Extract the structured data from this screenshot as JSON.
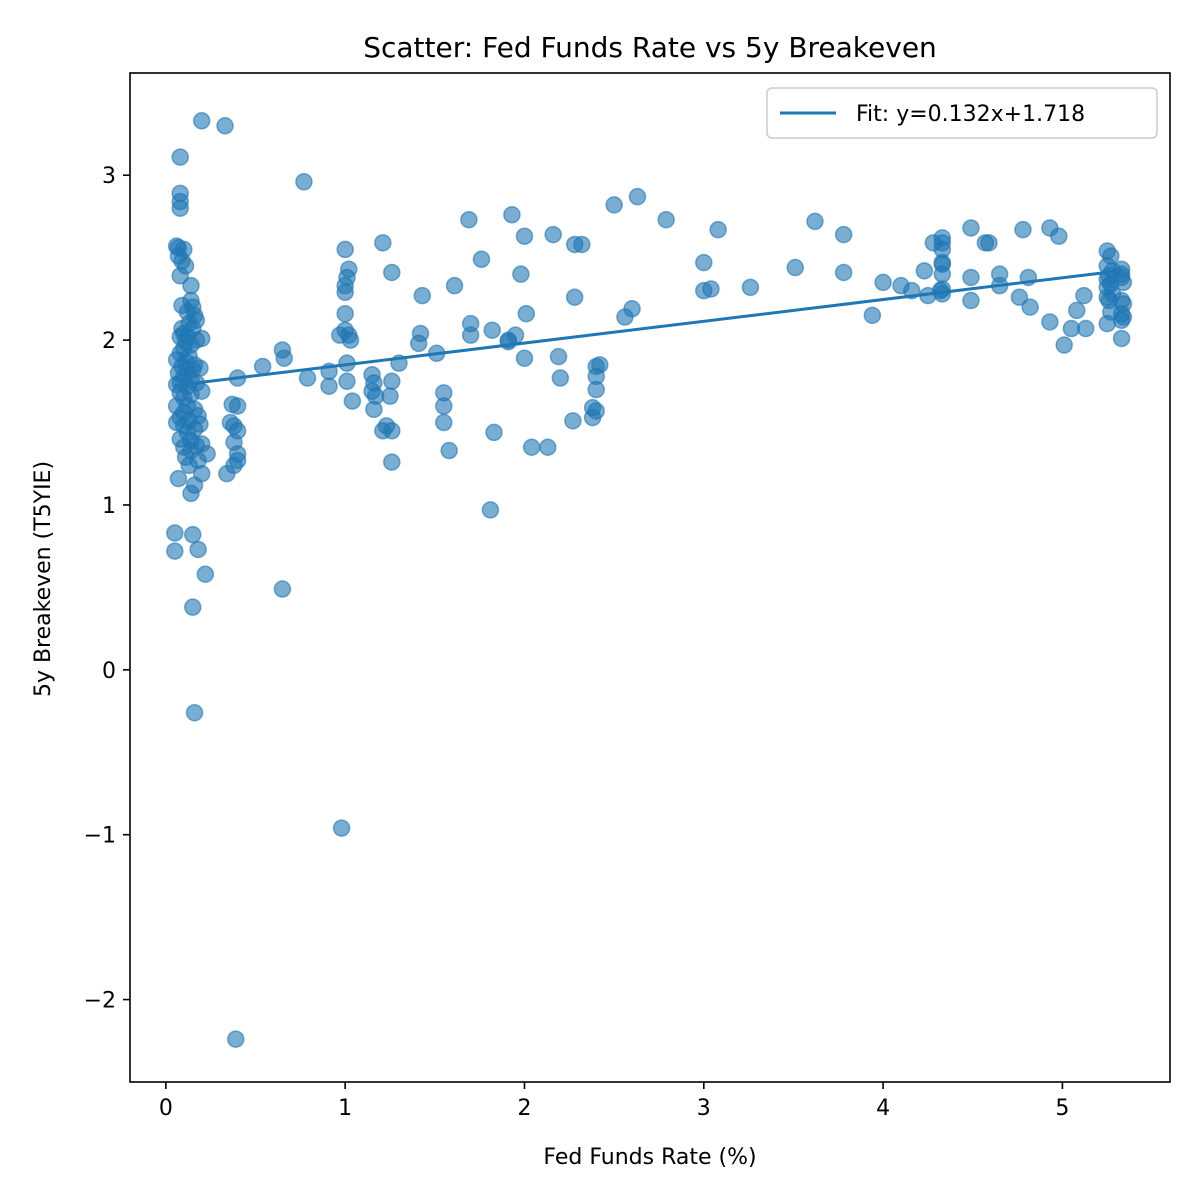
{
  "chart_data": {
    "type": "scatter",
    "title": "Scatter: Fed Funds Rate vs 5y Breakeven",
    "xlabel": "Fed Funds Rate (%)",
    "ylabel": "5y Breakeven (T5YIE)",
    "xlim": [
      -0.2,
      5.6
    ],
    "ylim": [
      -2.5,
      3.62
    ],
    "xticks": [
      0,
      1,
      2,
      3,
      4,
      5
    ],
    "yticks": [
      -2,
      -1,
      0,
      1,
      2,
      3
    ],
    "xtick_labels": [
      "0",
      "1",
      "2",
      "3",
      "4",
      "5"
    ],
    "ytick_labels": [
      "−2",
      "−1",
      "0",
      "1",
      "2",
      "3"
    ],
    "grid": false,
    "legend_position": "top-right",
    "colors": {
      "series": "#1f77b4"
    },
    "series": [
      {
        "type": "scatter",
        "points": [
          [
            0.2,
            3.33
          ],
          [
            0.33,
            3.3
          ],
          [
            0.08,
            3.11
          ],
          [
            0.08,
            2.89
          ],
          [
            0.08,
            2.84
          ],
          [
            0.08,
            2.8
          ],
          [
            0.06,
            2.57
          ],
          [
            0.07,
            2.56
          ],
          [
            0.1,
            2.55
          ],
          [
            0.07,
            2.51
          ],
          [
            0.09,
            2.48
          ],
          [
            0.11,
            2.45
          ],
          [
            0.08,
            2.39
          ],
          [
            0.14,
            2.33
          ],
          [
            0.14,
            2.24
          ],
          [
            0.09,
            2.21
          ],
          [
            0.15,
            2.2
          ],
          [
            0.12,
            2.17
          ],
          [
            0.16,
            2.15
          ],
          [
            0.17,
            2.12
          ],
          [
            0.13,
            2.1
          ],
          [
            0.09,
            2.07
          ],
          [
            0.15,
            2.07
          ],
          [
            0.1,
            2.04
          ],
          [
            0.08,
            2.02
          ],
          [
            0.12,
            2.02
          ],
          [
            0.2,
            2.01
          ],
          [
            0.17,
            2.0
          ],
          [
            0.11,
            1.99
          ],
          [
            0.14,
            1.97
          ],
          [
            0.1,
            1.95
          ],
          [
            0.08,
            1.92
          ],
          [
            0.13,
            1.9
          ],
          [
            0.06,
            1.88
          ],
          [
            0.11,
            1.87
          ],
          [
            0.16,
            1.85
          ],
          [
            0.09,
            1.84
          ],
          [
            0.19,
            1.83
          ],
          [
            0.15,
            1.82
          ],
          [
            0.12,
            1.82
          ],
          [
            0.07,
            1.8
          ],
          [
            0.1,
            1.78
          ],
          [
            0.14,
            1.76
          ],
          [
            0.08,
            1.74
          ],
          [
            0.17,
            1.74
          ],
          [
            0.06,
            1.73
          ],
          [
            0.12,
            1.72
          ],
          [
            0.2,
            1.69
          ],
          [
            0.08,
            1.68
          ],
          [
            0.14,
            1.67
          ],
          [
            0.1,
            1.65
          ],
          [
            0.06,
            1.6
          ],
          [
            0.12,
            1.6
          ],
          [
            0.16,
            1.58
          ],
          [
            0.1,
            1.56
          ],
          [
            0.18,
            1.54
          ],
          [
            0.08,
            1.53
          ],
          [
            0.13,
            1.51
          ],
          [
            0.06,
            1.5
          ],
          [
            0.19,
            1.49
          ],
          [
            0.1,
            1.48
          ],
          [
            0.16,
            1.46
          ],
          [
            0.12,
            1.44
          ],
          [
            0.08,
            1.4
          ],
          [
            0.14,
            1.39
          ],
          [
            0.2,
            1.37
          ],
          [
            0.17,
            1.36
          ],
          [
            0.1,
            1.35
          ],
          [
            0.14,
            1.33
          ],
          [
            0.23,
            1.31
          ],
          [
            0.11,
            1.29
          ],
          [
            0.18,
            1.27
          ],
          [
            0.13,
            1.24
          ],
          [
            0.2,
            1.19
          ],
          [
            0.07,
            1.16
          ],
          [
            0.16,
            1.12
          ],
          [
            0.14,
            1.07
          ],
          [
            0.05,
            0.83
          ],
          [
            0.15,
            0.82
          ],
          [
            0.05,
            0.72
          ],
          [
            0.18,
            0.73
          ],
          [
            0.22,
            0.58
          ],
          [
            0.15,
            0.38
          ],
          [
            0.16,
            -0.26
          ],
          [
            0.39,
            -2.24
          ],
          [
            0.37,
            1.61
          ],
          [
            0.4,
            1.6
          ],
          [
            0.36,
            1.5
          ],
          [
            0.38,
            1.48
          ],
          [
            0.4,
            1.45
          ],
          [
            0.38,
            1.38
          ],
          [
            0.4,
            1.31
          ],
          [
            0.4,
            1.27
          ],
          [
            0.38,
            1.24
          ],
          [
            0.34,
            1.19
          ],
          [
            0.4,
            1.77
          ],
          [
            0.54,
            1.84
          ],
          [
            0.65,
            1.94
          ],
          [
            0.66,
            1.89
          ],
          [
            0.65,
            0.49
          ],
          [
            0.77,
            2.96
          ],
          [
            0.79,
            1.77
          ],
          [
            0.91,
            1.81
          ],
          [
            0.91,
            1.72
          ],
          [
            0.98,
            -0.96
          ],
          [
            1.0,
            2.55
          ],
          [
            1.02,
            2.43
          ],
          [
            1.01,
            2.38
          ],
          [
            1.0,
            2.33
          ],
          [
            1.0,
            2.29
          ],
          [
            1.0,
            2.16
          ],
          [
            0.97,
            2.03
          ],
          [
            1.0,
            2.06
          ],
          [
            1.02,
            2.03
          ],
          [
            1.03,
            2.0
          ],
          [
            1.01,
            1.86
          ],
          [
            1.01,
            1.75
          ],
          [
            1.04,
            1.63
          ],
          [
            1.15,
            1.79
          ],
          [
            1.16,
            1.74
          ],
          [
            1.15,
            1.69
          ],
          [
            1.17,
            1.66
          ],
          [
            1.16,
            1.58
          ],
          [
            1.21,
            1.45
          ],
          [
            1.23,
            1.48
          ],
          [
            1.21,
            2.59
          ],
          [
            1.26,
            2.41
          ],
          [
            1.26,
            1.75
          ],
          [
            1.25,
            1.66
          ],
          [
            1.26,
            1.45
          ],
          [
            1.26,
            1.26
          ],
          [
            1.3,
            1.86
          ],
          [
            1.41,
            1.98
          ],
          [
            1.42,
            2.04
          ],
          [
            1.43,
            2.27
          ],
          [
            1.51,
            1.92
          ],
          [
            1.55,
            1.68
          ],
          [
            1.55,
            1.6
          ],
          [
            1.55,
            1.5
          ],
          [
            1.58,
            1.33
          ],
          [
            1.61,
            2.33
          ],
          [
            1.69,
            2.73
          ],
          [
            1.7,
            2.1
          ],
          [
            1.7,
            2.03
          ],
          [
            1.76,
            2.49
          ],
          [
            1.81,
            0.97
          ],
          [
            1.82,
            2.06
          ],
          [
            1.83,
            1.44
          ],
          [
            1.91,
            2.0
          ],
          [
            1.91,
            1.99
          ],
          [
            1.93,
            2.76
          ],
          [
            1.95,
            2.03
          ],
          [
            1.98,
            2.4
          ],
          [
            2.0,
            2.63
          ],
          [
            2.0,
            1.89
          ],
          [
            2.01,
            2.16
          ],
          [
            2.04,
            1.35
          ],
          [
            2.13,
            1.35
          ],
          [
            2.16,
            2.64
          ],
          [
            2.19,
            1.9
          ],
          [
            2.2,
            1.77
          ],
          [
            2.27,
            1.51
          ],
          [
            2.28,
            2.58
          ],
          [
            2.28,
            2.26
          ],
          [
            2.32,
            2.58
          ],
          [
            2.38,
            1.59
          ],
          [
            2.38,
            1.53
          ],
          [
            2.4,
            1.57
          ],
          [
            2.4,
            1.7
          ],
          [
            2.4,
            1.78
          ],
          [
            2.4,
            1.84
          ],
          [
            2.42,
            1.85
          ],
          [
            2.5,
            2.82
          ],
          [
            2.56,
            2.14
          ],
          [
            2.6,
            2.19
          ],
          [
            2.63,
            2.87
          ],
          [
            2.79,
            2.73
          ],
          [
            3.0,
            2.3
          ],
          [
            3.0,
            2.47
          ],
          [
            3.04,
            2.31
          ],
          [
            3.08,
            2.67
          ],
          [
            3.26,
            2.32
          ],
          [
            3.51,
            2.44
          ],
          [
            3.62,
            2.72
          ],
          [
            3.78,
            2.64
          ],
          [
            3.78,
            2.41
          ],
          [
            3.94,
            2.15
          ],
          [
            4.0,
            2.35
          ],
          [
            4.1,
            2.33
          ],
          [
            4.16,
            2.3
          ],
          [
            4.23,
            2.42
          ],
          [
            4.25,
            2.27
          ],
          [
            4.28,
            2.59
          ],
          [
            4.32,
            2.3
          ],
          [
            4.33,
            2.62
          ],
          [
            4.33,
            2.59
          ],
          [
            4.33,
            2.55
          ],
          [
            4.33,
            2.47
          ],
          [
            4.33,
            2.46
          ],
          [
            4.33,
            2.4
          ],
          [
            4.33,
            2.31
          ],
          [
            4.33,
            2.28
          ],
          [
            4.49,
            2.68
          ],
          [
            4.49,
            2.38
          ],
          [
            4.49,
            2.24
          ],
          [
            4.57,
            2.59
          ],
          [
            4.59,
            2.59
          ],
          [
            4.65,
            2.4
          ],
          [
            4.65,
            2.33
          ],
          [
            4.76,
            2.26
          ],
          [
            4.78,
            2.67
          ],
          [
            4.81,
            2.38
          ],
          [
            4.82,
            2.2
          ],
          [
            4.93,
            2.68
          ],
          [
            4.93,
            2.11
          ],
          [
            4.98,
            2.63
          ],
          [
            5.01,
            1.97
          ],
          [
            5.05,
            2.07
          ],
          [
            5.08,
            2.18
          ],
          [
            5.12,
            2.27
          ],
          [
            5.13,
            2.07
          ],
          [
            5.25,
            2.54
          ],
          [
            5.27,
            2.51
          ],
          [
            5.25,
            2.45
          ],
          [
            5.28,
            2.42
          ],
          [
            5.26,
            2.39
          ],
          [
            5.25,
            2.37
          ],
          [
            5.27,
            2.34
          ],
          [
            5.25,
            2.32
          ],
          [
            5.28,
            2.28
          ],
          [
            5.25,
            2.26
          ],
          [
            5.26,
            2.24
          ],
          [
            5.27,
            2.17
          ],
          [
            5.25,
            2.1
          ],
          [
            5.33,
            2.43
          ],
          [
            5.33,
            2.4
          ],
          [
            5.33,
            2.38
          ],
          [
            5.34,
            2.35
          ],
          [
            5.33,
            2.24
          ],
          [
            5.34,
            2.22
          ],
          [
            5.33,
            2.16
          ],
          [
            5.34,
            2.14
          ],
          [
            5.33,
            2.12
          ],
          [
            5.33,
            2.01
          ]
        ]
      },
      {
        "type": "line",
        "name": "Fit: y=0.132x+1.718",
        "x": [
          0.05,
          5.33
        ],
        "y": [
          1.7246,
          2.4216
        ]
      }
    ]
  }
}
